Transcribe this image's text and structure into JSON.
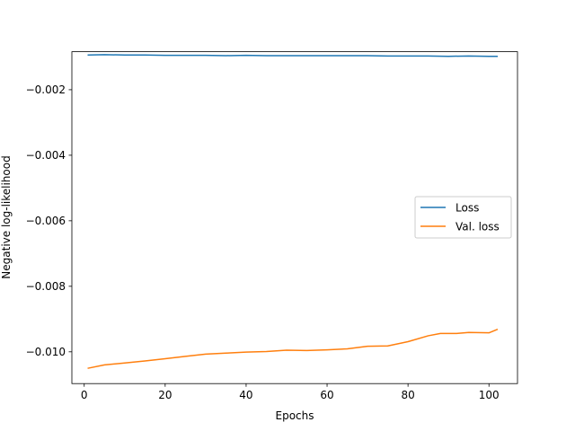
{
  "chart_data": {
    "type": "line",
    "xlabel": "Epochs",
    "ylabel": "Negative log-likelihood",
    "xlim": [
      -3.05,
      107.05
    ],
    "ylim": [
      -0.01097,
      -0.00084
    ],
    "xticks": [
      0,
      20,
      40,
      60,
      80,
      100
    ],
    "xtick_labels": [
      "0",
      "20",
      "40",
      "60",
      "80",
      "100"
    ],
    "yticks": [
      -0.002,
      -0.004,
      -0.006,
      -0.008,
      -0.01
    ],
    "ytick_labels": [
      "−0.002",
      "−0.004",
      "−0.006",
      "−0.008",
      "−0.010"
    ],
    "legend_position": "center-right",
    "grid": false,
    "series": [
      {
        "name": "Loss",
        "color": "#1f77b4",
        "x": [
          1,
          5,
          10,
          15,
          20,
          25,
          30,
          35,
          40,
          45,
          50,
          55,
          60,
          65,
          70,
          75,
          80,
          85,
          90,
          95,
          100,
          102
        ],
        "y": [
          -0.00094,
          -0.00093,
          -0.00094,
          -0.00094,
          -0.00095,
          -0.00095,
          -0.00095,
          -0.00096,
          -0.00095,
          -0.00096,
          -0.00096,
          -0.00096,
          -0.00096,
          -0.00096,
          -0.00096,
          -0.00097,
          -0.00097,
          -0.00097,
          -0.00098,
          -0.00097,
          -0.00098,
          -0.00098
        ]
      },
      {
        "name": "Val. loss",
        "color": "#ff7f0e",
        "x": [
          1,
          5,
          10,
          15,
          20,
          25,
          30,
          35,
          40,
          45,
          50,
          55,
          60,
          65,
          70,
          75,
          80,
          85,
          88,
          92,
          95,
          100,
          102
        ],
        "y": [
          -0.0105,
          -0.0104,
          -0.01034,
          -0.01028,
          -0.01021,
          -0.01014,
          -0.01007,
          -0.01004,
          -0.01001,
          -0.00999,
          -0.00995,
          -0.00996,
          -0.00994,
          -0.00991,
          -0.00983,
          -0.00982,
          -0.00969,
          -0.00951,
          -0.00944,
          -0.00944,
          -0.00941,
          -0.00942,
          -0.00932
        ]
      }
    ]
  }
}
